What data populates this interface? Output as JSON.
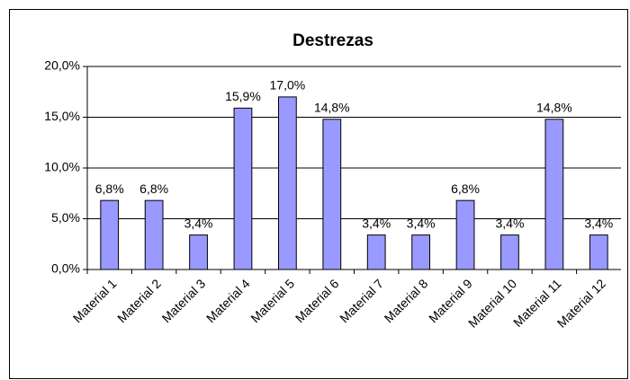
{
  "chart_data": {
    "type": "bar",
    "title": "Destrezas",
    "categories": [
      "Material 1",
      "Material 2",
      "Material 3",
      "Material 4",
      "Material 5",
      "Material 6",
      "Material 7",
      "Material 8",
      "Material 9",
      "Material 10",
      "Material 11",
      "Material 12"
    ],
    "values": [
      6.8,
      6.8,
      3.4,
      15.9,
      17.0,
      14.8,
      3.4,
      3.4,
      6.8,
      3.4,
      14.8,
      3.4
    ],
    "value_labels": [
      "6,8%",
      "6,8%",
      "3,4%",
      "15,9%",
      "17,0%",
      "14,8%",
      "3,4%",
      "3,4%",
      "6,8%",
      "3,4%",
      "14,8%",
      "3,4%"
    ],
    "color": "#9999ff",
    "ylim": [
      0,
      20
    ],
    "yticks": [
      {
        "value": 0,
        "label": "0,0%"
      },
      {
        "value": 5,
        "label": "5,0%"
      },
      {
        "value": 10,
        "label": "10,0%"
      },
      {
        "value": 15,
        "label": "15,0%"
      },
      {
        "value": 20,
        "label": "20,0%"
      }
    ],
    "grid": true
  }
}
